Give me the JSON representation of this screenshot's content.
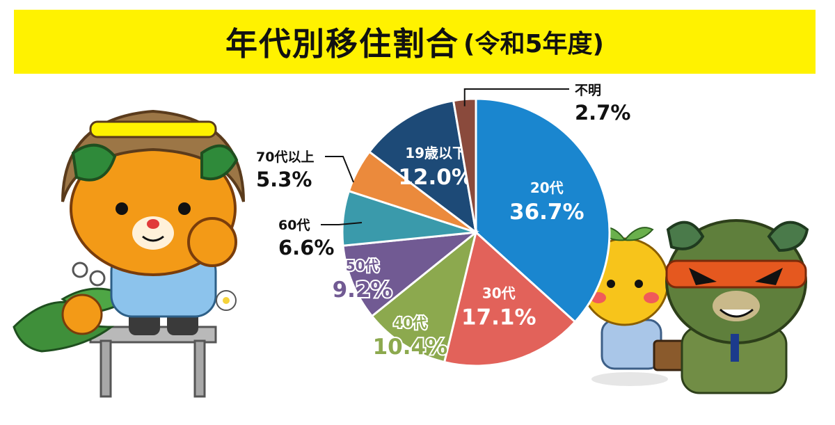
{
  "title": "年代別移住割合",
  "subtitle": "(令和5年度)",
  "colors": {
    "banner": "#fff200"
  },
  "chart_data": {
    "type": "pie",
    "title": "年代別移住割合",
    "subtitle": "(令和5年度)",
    "slices": [
      {
        "label": "20代",
        "value": 36.7,
        "display": "36.7%",
        "color": "#1a86cf",
        "label_pos": "inside"
      },
      {
        "label": "30代",
        "value": 17.1,
        "display": "17.1%",
        "color": "#e2625a",
        "label_pos": "inside"
      },
      {
        "label": "40代",
        "value": 10.4,
        "display": "10.4%",
        "color": "#8ca94e",
        "label_pos": "edge"
      },
      {
        "label": "50代",
        "value": 9.2,
        "display": "9.2%",
        "color": "#715a93",
        "label_pos": "edge"
      },
      {
        "label": "60代",
        "value": 6.6,
        "display": "6.6%",
        "color": "#3a9aab",
        "label_pos": "outside"
      },
      {
        "label": "70代以上",
        "value": 5.3,
        "display": "5.3%",
        "color": "#eb8a3c",
        "label_pos": "outside"
      },
      {
        "label": "19歳以下",
        "value": 12.0,
        "display": "12.0%",
        "color": "#1d4a77",
        "label_pos": "inside"
      },
      {
        "label": "不明",
        "value": 2.7,
        "display": "2.7%",
        "color": "#8a4a3c",
        "label_pos": "outside"
      }
    ],
    "start_angle": "12 o'clock",
    "direction": "clockwise",
    "legend": "none"
  },
  "illustrations": [
    {
      "name": "mican-mascot-with-mikan-icon"
    },
    {
      "name": "dekopon-and-evil-mican-mascots-icon"
    }
  ]
}
